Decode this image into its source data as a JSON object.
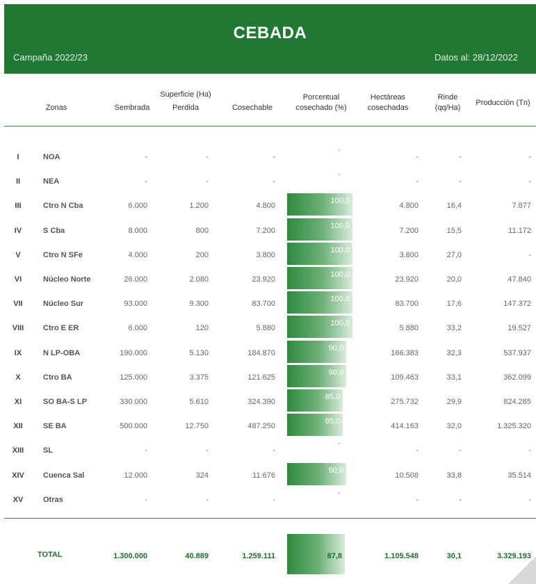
{
  "header": {
    "title": "CEBADA",
    "campaign": "Campaña 2022/23",
    "date": "Datos al: 28/12/2022"
  },
  "columns": {
    "zonas": "Zonas",
    "superficie": "Superficie (Ha)",
    "sembrada": "Sembrada",
    "perdida": "Perdida",
    "cosechable": "Cosechable",
    "porcentual": "Porcentual",
    "cosechado": "cosechado (%)",
    "hectareas": "Hectáreas",
    "cosechadas": "cosechadas",
    "rinde": "Rinde",
    "qqha": "(qq/Ha)",
    "produccion": "Producción (Tn)"
  },
  "rows": [
    {
      "roman": "I",
      "zone": "NOA",
      "sembrada": "-",
      "perdida": "-",
      "cosechable": "-",
      "pct": "-",
      "pct_value": 0,
      "hect": "-",
      "rinde": "-",
      "prod": "-"
    },
    {
      "roman": "II",
      "zone": "NEA",
      "sembrada": "-",
      "perdida": "-",
      "cosechable": "-",
      "pct": "-",
      "pct_value": 0,
      "hect": "-",
      "rinde": "-",
      "prod": "-"
    },
    {
      "roman": "III",
      "zone": "Ctro N Cba",
      "sembrada": "6.000",
      "perdida": "1.200",
      "cosechable": "4.800",
      "pct": "100,0",
      "pct_value": 100,
      "hect": "4.800",
      "rinde": "16,4",
      "prod": "7.877"
    },
    {
      "roman": "IV",
      "zone": "S Cba",
      "sembrada": "8.000",
      "perdida": "800",
      "cosechable": "7.200",
      "pct": "100,0",
      "pct_value": 100,
      "hect": "7.200",
      "rinde": "15,5",
      "prod": "11.172"
    },
    {
      "roman": "V",
      "zone": "Ctro N SFe",
      "sembrada": "4.000",
      "perdida": "200",
      "cosechable": "3.800",
      "pct": "100,0",
      "pct_value": 100,
      "hect": "3.800",
      "rinde": "27,0",
      "prod": "-"
    },
    {
      "roman": "VI",
      "zone": "Núcleo Norte",
      "sembrada": "26.000",
      "perdida": "2.080",
      "cosechable": "23.920",
      "pct": "100,0",
      "pct_value": 100,
      "hect": "23.920",
      "rinde": "20,0",
      "prod": "47.840"
    },
    {
      "roman": "VII",
      "zone": "Núcleo Sur",
      "sembrada": "93.000",
      "perdida": "9.300",
      "cosechable": "83.700",
      "pct": "100,0",
      "pct_value": 100,
      "hect": "83.700",
      "rinde": "17,6",
      "prod": "147.372"
    },
    {
      "roman": "VIII",
      "zone": "Ctro E ER",
      "sembrada": "6.000",
      "perdida": "120",
      "cosechable": "5.880",
      "pct": "100,0",
      "pct_value": 100,
      "hect": "5.880",
      "rinde": "33,2",
      "prod": "19.527"
    },
    {
      "roman": "IX",
      "zone": "N LP-OBA",
      "sembrada": "190.000",
      "perdida": "5.130",
      "cosechable": "184.870",
      "pct": "90,0",
      "pct_value": 90,
      "hect": "166.383",
      "rinde": "32,3",
      "prod": "537.937"
    },
    {
      "roman": "X",
      "zone": "Ctro BA",
      "sembrada": "125.000",
      "perdida": "3.375",
      "cosechable": "121.625",
      "pct": "90,0",
      "pct_value": 90,
      "hect": "109.463",
      "rinde": "33,1",
      "prod": "362.099"
    },
    {
      "roman": "XI",
      "zone": "SO BA-S LP",
      "sembrada": "330.000",
      "perdida": "5.610",
      "cosechable": "324.390",
      "pct": "85,0",
      "pct_value": 85,
      "hect": "275.732",
      "rinde": "29,9",
      "prod": "824.285"
    },
    {
      "roman": "XII",
      "zone": "SE BA",
      "sembrada": "500.000",
      "perdida": "12.750",
      "cosechable": "487.250",
      "pct": "85,0",
      "pct_value": 85,
      "hect": "414.163",
      "rinde": "32,0",
      "prod": "1.325.320"
    },
    {
      "roman": "XIII",
      "zone": "SL",
      "sembrada": "-",
      "perdida": "-",
      "cosechable": "-",
      "pct": "-",
      "pct_value": 0,
      "hect": "-",
      "rinde": "-",
      "prod": "-"
    },
    {
      "roman": "XIV",
      "zone": "Cuenca Sal",
      "sembrada": "12.000",
      "perdida": "324",
      "cosechable": "11.676",
      "pct": "90,0",
      "pct_value": 90,
      "hect": "10.508",
      "rinde": "33,8",
      "prod": "35.514"
    },
    {
      "roman": "XV",
      "zone": "Otras",
      "sembrada": "-",
      "perdida": "-",
      "cosechable": "-",
      "pct": "-",
      "pct_value": 0,
      "hect": "-",
      "rinde": "-",
      "prod": "-"
    }
  ],
  "total": {
    "label": "TOTAL",
    "sembrada": "1.300.000",
    "perdida": "40.889",
    "cosechable": "1.259.111",
    "pct": "87,8",
    "pct_value": 87.8,
    "hect": "1.105.548",
    "rinde": "30,1",
    "prod": "3.329.193"
  },
  "colors": {
    "header_bg": "#217832",
    "bar_start": "#2c8a3c",
    "bar_end": "#d9ecdb",
    "total_text": "#1f6f2d"
  }
}
